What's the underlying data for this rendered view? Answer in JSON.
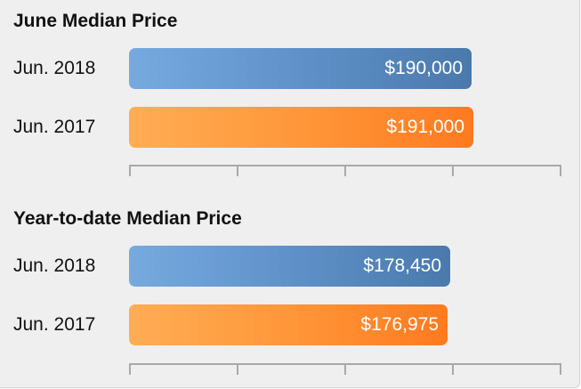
{
  "chart_data": [
    {
      "type": "bar",
      "orientation": "horizontal",
      "title": "June Median Price",
      "categories": [
        "Jun. 2018",
        "Jun. 2017"
      ],
      "values": [
        190000,
        191000
      ],
      "value_labels": [
        "$190,000",
        "$191,000"
      ],
      "colors": [
        "#5d8fc6",
        "#ff9436"
      ],
      "xlim": [
        0,
        240000
      ],
      "ticks": 5
    },
    {
      "type": "bar",
      "orientation": "horizontal",
      "title": "Year-to-date Median Price",
      "categories": [
        "Jun. 2018",
        "Jun. 2017"
      ],
      "values": [
        178450,
        176975
      ],
      "value_labels": [
        "$178,450",
        "$176,975"
      ],
      "colors": [
        "#5d8fc6",
        "#ff9436"
      ],
      "xlim": [
        0,
        240000
      ],
      "ticks": 5
    }
  ]
}
